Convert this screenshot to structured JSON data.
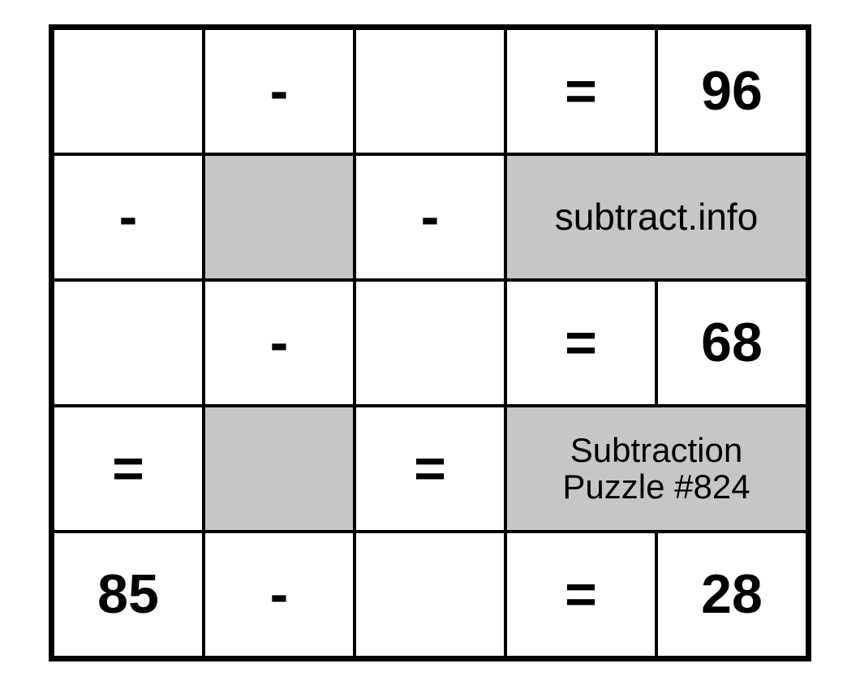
{
  "puzzle": {
    "type": "subtraction-grid",
    "rows": 5,
    "cols": 5,
    "background_color": "#ffffff",
    "gray_fill": "#c6c6c6",
    "border_color": "#000000",
    "font_family": "Helvetica Neue",
    "value_fontsize": 68,
    "info_fontsize": 46,
    "subtitle_fontsize": 42,
    "site_label": "subtract.info",
    "title_label": "Subtraction\nPuzzle #824",
    "grid": {
      "r1": {
        "c1": "",
        "c2": "-",
        "c3": "",
        "c4": "=",
        "c5": "96"
      },
      "r2": {
        "c1": "-",
        "c2": "",
        "c3": "-",
        "c45_info": "subtract.info"
      },
      "r3": {
        "c1": "",
        "c2": "-",
        "c3": "",
        "c4": "=",
        "c5": "68"
      },
      "r4": {
        "c1": "=",
        "c2": "",
        "c3": "=",
        "c45_title": "Subtraction\nPuzzle #824"
      },
      "r5": {
        "c1": "85",
        "c2": "-",
        "c3": "",
        "c4": "=",
        "c5": "28"
      }
    }
  }
}
